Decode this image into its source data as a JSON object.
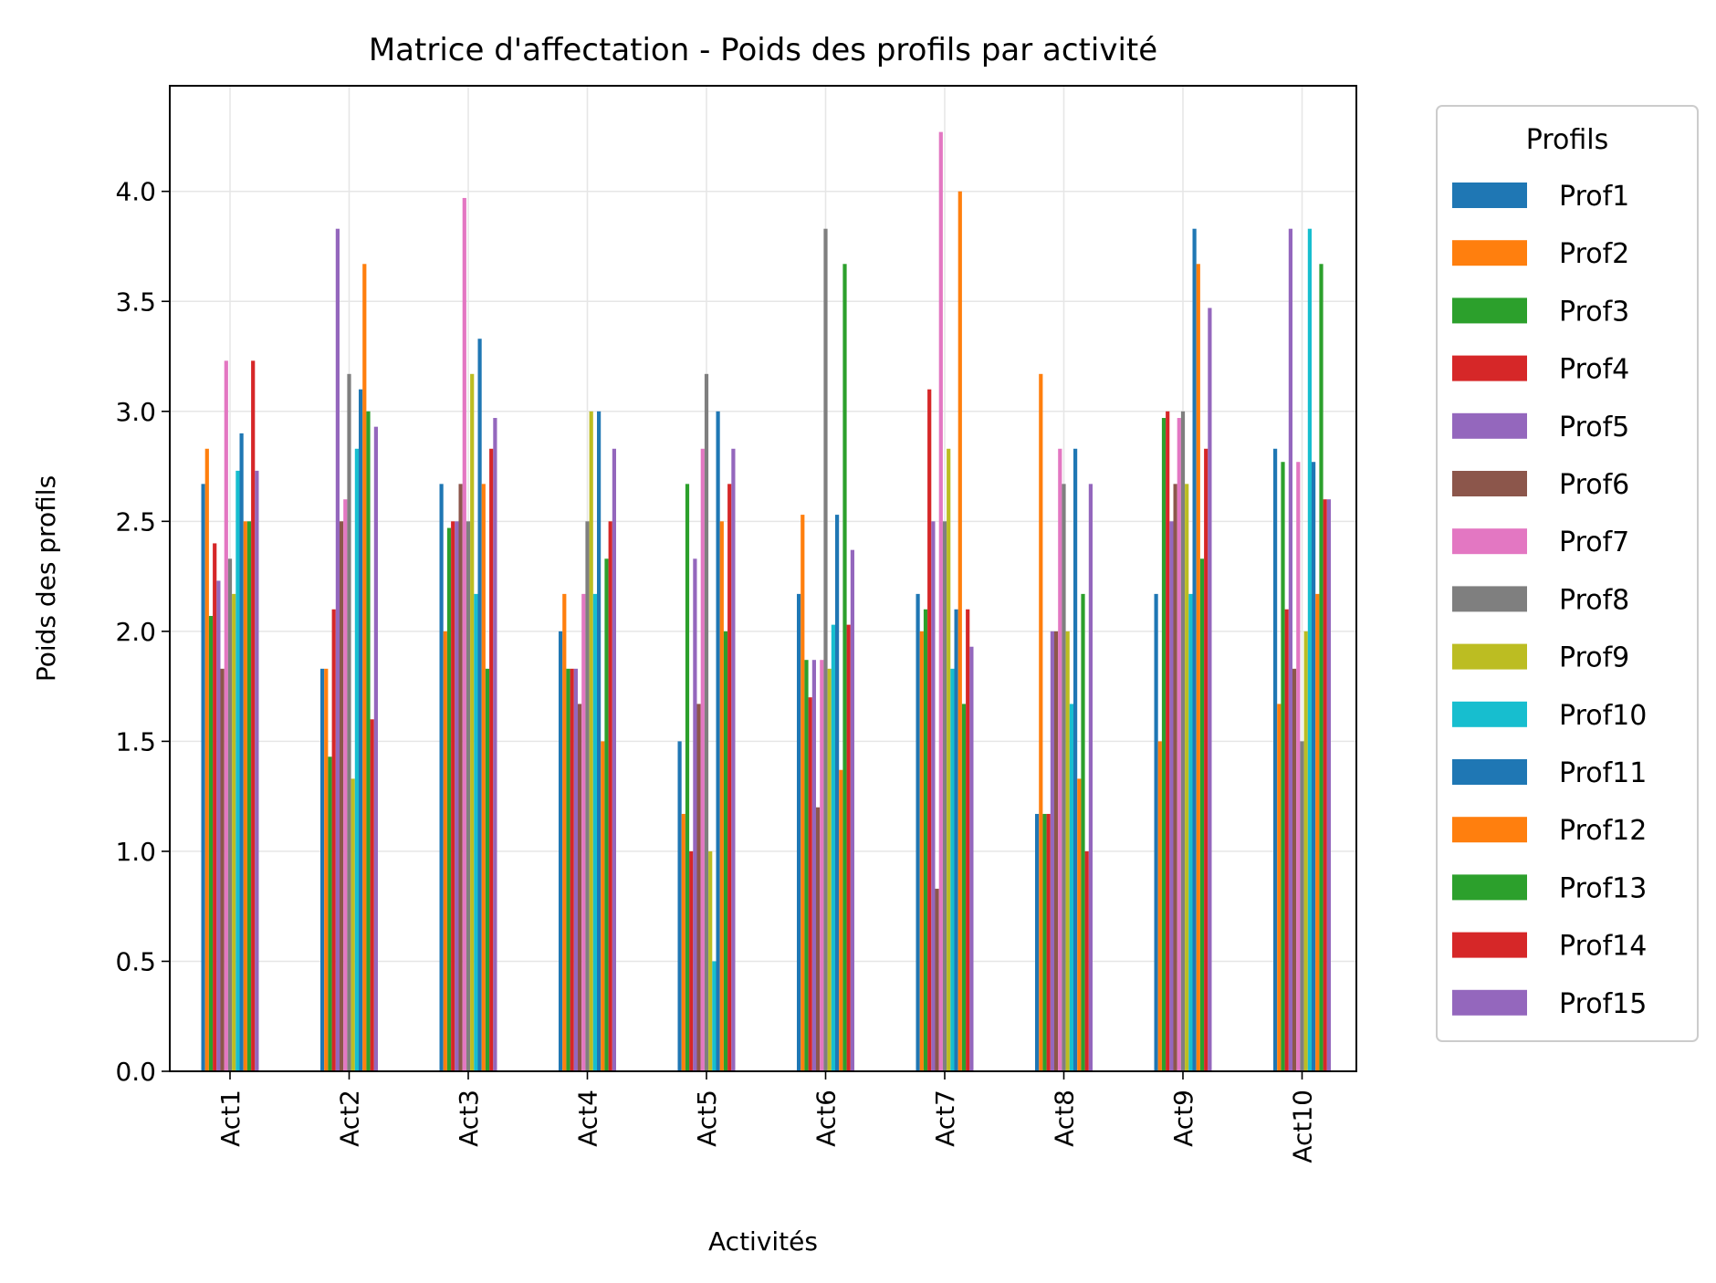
{
  "chart_data": {
    "type": "bar",
    "title": "Matrice d'affectation - Poids des profils par activité",
    "xlabel": "Activités",
    "ylabel": "Poids des profils",
    "ylim": [
      0,
      4.48
    ],
    "yticks": [
      "0.0",
      "0.5",
      "1.0",
      "1.5",
      "2.0",
      "2.5",
      "3.0",
      "3.5",
      "4.0"
    ],
    "grid": true,
    "legend": {
      "title": "Profils",
      "placement": "outside-right"
    },
    "categories": [
      "Act1",
      "Act2",
      "Act3",
      "Act4",
      "Act5",
      "Act6",
      "Act7",
      "Act8",
      "Act9",
      "Act10"
    ],
    "series": [
      {
        "name": "Prof1",
        "color": "#1f77b4",
        "values": [
          2.67,
          1.83,
          2.67,
          2.0,
          1.5,
          2.17,
          2.17,
          1.17,
          2.17,
          2.83
        ]
      },
      {
        "name": "Prof2",
        "color": "#ff7f0e",
        "values": [
          2.83,
          1.83,
          2.0,
          2.17,
          1.17,
          2.53,
          2.0,
          3.17,
          1.5,
          1.67
        ]
      },
      {
        "name": "Prof3",
        "color": "#2ca02c",
        "values": [
          2.07,
          1.43,
          2.47,
          1.83,
          2.67,
          1.87,
          2.1,
          1.17,
          2.97,
          2.77
        ]
      },
      {
        "name": "Prof4",
        "color": "#d62728",
        "values": [
          2.4,
          2.1,
          2.5,
          1.83,
          1.0,
          1.7,
          3.1,
          1.17,
          3.0,
          2.1
        ]
      },
      {
        "name": "Prof5",
        "color": "#9467bd",
        "values": [
          2.23,
          3.83,
          2.5,
          1.83,
          2.33,
          1.87,
          2.5,
          2.0,
          2.5,
          3.83
        ]
      },
      {
        "name": "Prof6",
        "color": "#8c564b",
        "values": [
          1.83,
          2.5,
          2.67,
          1.67,
          1.67,
          1.2,
          0.83,
          2.0,
          2.67,
          1.83
        ]
      },
      {
        "name": "Prof7",
        "color": "#e377c2",
        "values": [
          3.23,
          2.6,
          3.97,
          2.17,
          2.83,
          1.87,
          4.27,
          2.83,
          2.97,
          2.77
        ]
      },
      {
        "name": "Prof8",
        "color": "#7f7f7f",
        "values": [
          2.33,
          3.17,
          2.5,
          2.5,
          3.17,
          3.83,
          2.5,
          2.67,
          3.0,
          1.5
        ]
      },
      {
        "name": "Prof9",
        "color": "#bcbd22",
        "values": [
          2.17,
          1.33,
          3.17,
          3.0,
          1.0,
          1.83,
          2.83,
          2.0,
          2.67,
          2.0
        ]
      },
      {
        "name": "Prof10",
        "color": "#17becf",
        "values": [
          2.73,
          2.83,
          2.17,
          2.17,
          0.5,
          2.03,
          1.83,
          1.67,
          2.17,
          3.83
        ]
      },
      {
        "name": "Prof11",
        "color": "#1f77b4",
        "values": [
          2.9,
          3.1,
          3.33,
          3.0,
          3.0,
          2.53,
          2.1,
          2.83,
          3.83,
          2.77
        ]
      },
      {
        "name": "Prof12",
        "color": "#ff7f0e",
        "values": [
          2.5,
          3.67,
          2.67,
          1.5,
          2.5,
          1.37,
          4.0,
          1.33,
          3.67,
          2.17
        ]
      },
      {
        "name": "Prof13",
        "color": "#2ca02c",
        "values": [
          2.5,
          3.0,
          1.83,
          2.33,
          2.0,
          3.67,
          1.67,
          2.17,
          2.33,
          3.67
        ]
      },
      {
        "name": "Prof14",
        "color": "#d62728",
        "values": [
          3.23,
          1.6,
          2.83,
          2.5,
          2.67,
          2.03,
          2.1,
          1.0,
          2.83,
          2.6
        ]
      },
      {
        "name": "Prof15",
        "color": "#9467bd",
        "values": [
          2.73,
          2.93,
          2.97,
          2.83,
          2.83,
          2.37,
          1.93,
          2.67,
          3.47,
          2.6
        ]
      }
    ]
  }
}
